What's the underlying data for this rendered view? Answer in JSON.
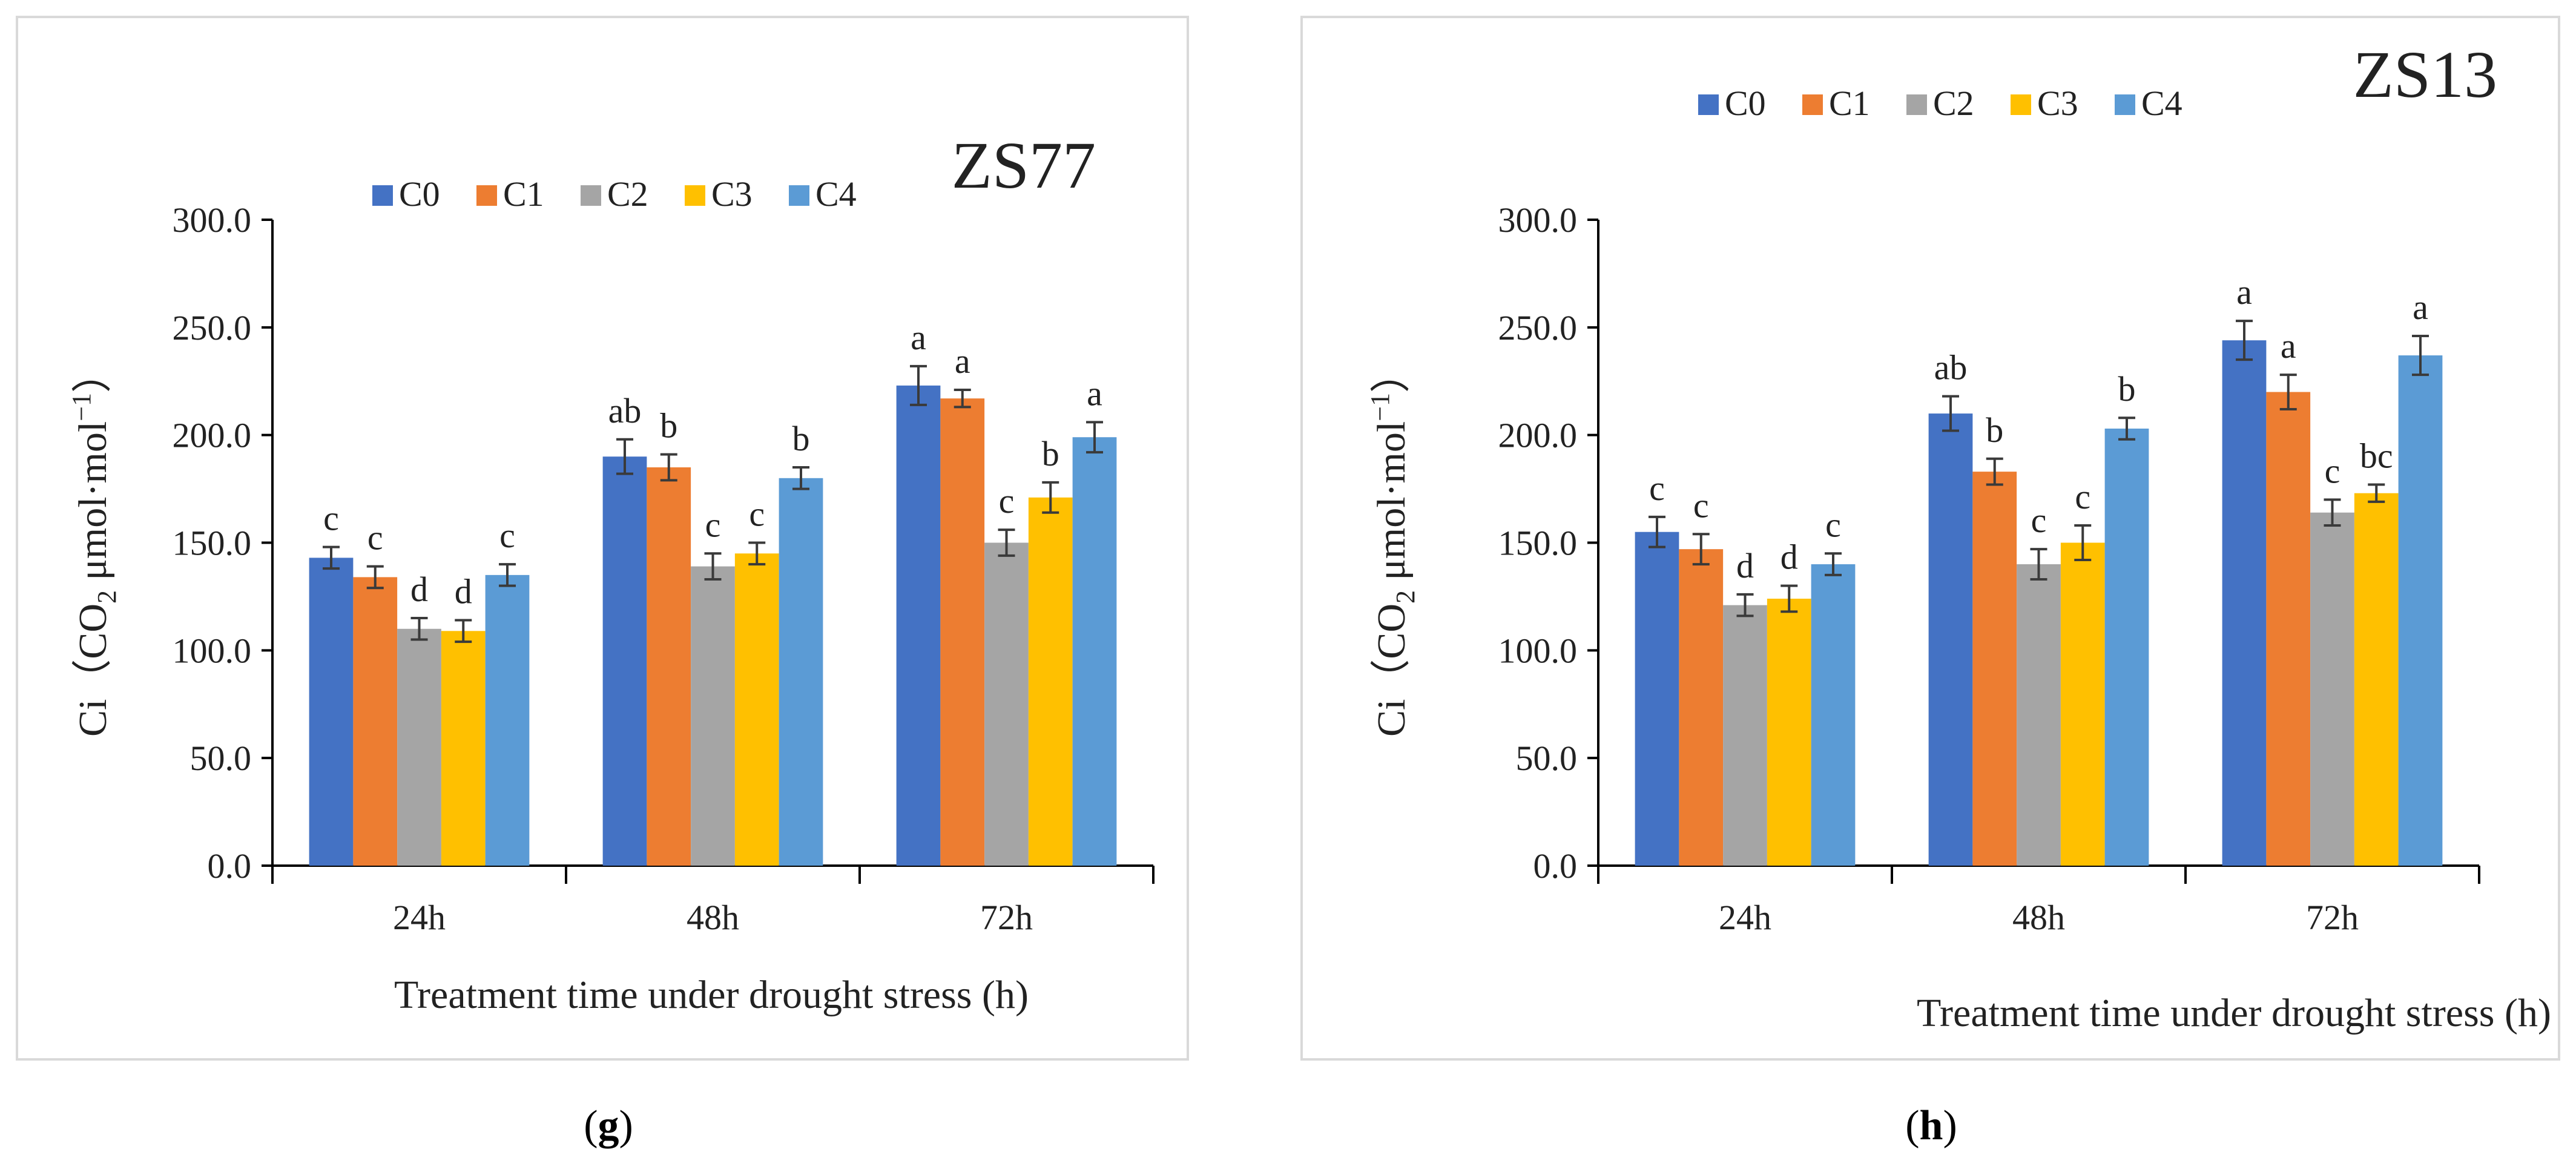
{
  "chart_data": [
    {
      "type": "bar",
      "title": "ZS77",
      "panel_label": "g",
      "xlabel": "Treatment time under drought stress (h)",
      "ylabel_prefix": "Ci（CO",
      "ylabel_sub": "2",
      "ylabel_mid": " μmol·mol",
      "ylabel_sup": "−1",
      "ylabel_suffix": "）",
      "ylim": [
        0,
        300
      ],
      "yticks": [
        "0.0",
        "50.0",
        "100.0",
        "150.0",
        "200.0",
        "250.0",
        "300.0"
      ],
      "categories": [
        "24h",
        "48h",
        "72h"
      ],
      "legend_position": "top",
      "series": [
        {
          "name": "C0",
          "color": "#4472C4",
          "values": [
            143,
            190,
            223
          ],
          "errors": [
            5,
            8,
            9
          ],
          "labels": [
            "c",
            "ab",
            "a"
          ]
        },
        {
          "name": "C1",
          "color": "#ED7D31",
          "values": [
            134,
            185,
            217
          ],
          "errors": [
            5,
            6,
            4
          ],
          "labels": [
            "c",
            "b",
            "a"
          ]
        },
        {
          "name": "C2",
          "color": "#A5A5A5",
          "values": [
            110,
            139,
            150
          ],
          "errors": [
            5,
            6,
            6
          ],
          "labels": [
            "d",
            "c",
            "c"
          ]
        },
        {
          "name": "C3",
          "color": "#FFC000",
          "values": [
            109,
            145,
            171
          ],
          "errors": [
            5,
            5,
            7
          ],
          "labels": [
            "d",
            "c",
            "b"
          ]
        },
        {
          "name": "C4",
          "color": "#5B9BD5",
          "values": [
            135,
            180,
            199
          ],
          "errors": [
            5,
            5,
            7
          ],
          "labels": [
            "c",
            "b",
            "a"
          ]
        }
      ]
    },
    {
      "type": "bar",
      "title": "ZS13",
      "panel_label": "h",
      "xlabel": "Treatment time under drought stress (h)",
      "ylabel_prefix": "Ci（CO",
      "ylabel_sub": "2",
      "ylabel_mid": " μmol·mol",
      "ylabel_sup": "−1",
      "ylabel_suffix": "）",
      "ylim": [
        0,
        300
      ],
      "yticks": [
        "0.0",
        "50.0",
        "100.0",
        "150.0",
        "200.0",
        "250.0",
        "300.0"
      ],
      "categories": [
        "24h",
        "48h",
        "72h"
      ],
      "legend_position": "top",
      "series": [
        {
          "name": "C0",
          "color": "#4472C4",
          "values": [
            155,
            210,
            244
          ],
          "errors": [
            7,
            8,
            9
          ],
          "labels": [
            "c",
            "ab",
            "a"
          ]
        },
        {
          "name": "C1",
          "color": "#ED7D31",
          "values": [
            147,
            183,
            220
          ],
          "errors": [
            7,
            6,
            8
          ],
          "labels": [
            "c",
            "b",
            "a"
          ]
        },
        {
          "name": "C2",
          "color": "#A5A5A5",
          "values": [
            121,
            140,
            164
          ],
          "errors": [
            5,
            7,
            6
          ],
          "labels": [
            "d",
            "c",
            "c"
          ]
        },
        {
          "name": "C3",
          "color": "#FFC000",
          "values": [
            124,
            150,
            173
          ],
          "errors": [
            6,
            8,
            4
          ],
          "labels": [
            "d",
            "c",
            "bc"
          ]
        },
        {
          "name": "C4",
          "color": "#5B9BD5",
          "values": [
            140,
            203,
            237
          ],
          "errors": [
            5,
            5,
            9
          ],
          "labels": [
            "c",
            "b",
            "a"
          ]
        }
      ]
    }
  ]
}
